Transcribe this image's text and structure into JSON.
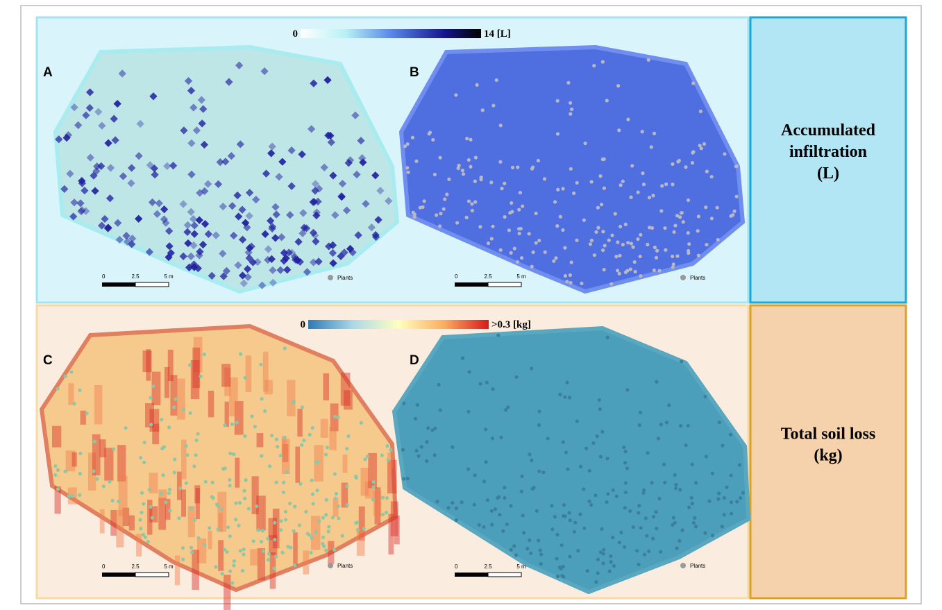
{
  "rows": [
    {
      "colorbar": {
        "min": "0",
        "max": "14 [L]"
      },
      "panels": [
        {
          "label": "A",
          "scalebar": [
            "0",
            "2.5",
            "5 m"
          ],
          "legend": "Plants"
        },
        {
          "label": "B",
          "scalebar": [
            "0",
            "2.5",
            "5 m"
          ],
          "legend": "Plants"
        }
      ],
      "side_label": [
        "Accumulated",
        "infiltration",
        "(L)"
      ]
    },
    {
      "colorbar": {
        "min": "0",
        "max": ">0.3 [kg]"
      },
      "panels": [
        {
          "label": "C",
          "scalebar": [
            "0",
            "2.5",
            "5 m"
          ],
          "legend": "Plants"
        },
        {
          "label": "D",
          "scalebar": [
            "0",
            "2.5",
            "5 m"
          ],
          "legend": "Plants"
        }
      ],
      "side_label": [
        "Total soil loss",
        "(kg)"
      ]
    }
  ]
}
